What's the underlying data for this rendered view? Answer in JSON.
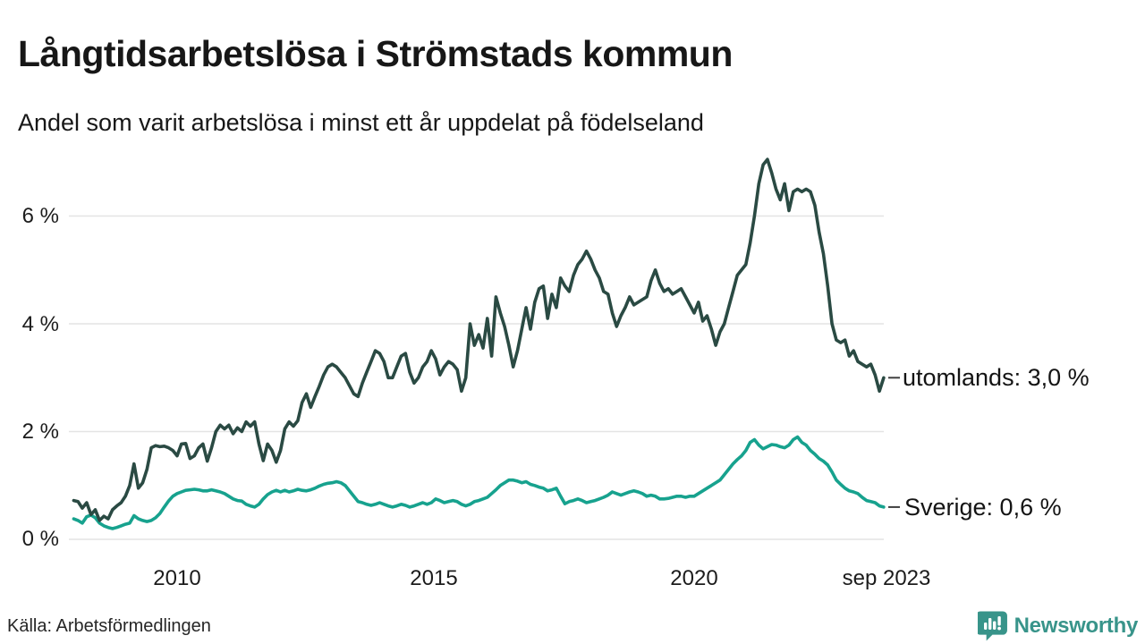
{
  "header": {
    "title": "Långtidsarbetslösa i Strömstads kommun",
    "subtitle": "Andel som varit arbetslösa i minst ett år uppdelat på födelseland"
  },
  "footer": {
    "source": "Källa: Arbetsförmedlingen",
    "brand": "Newsworthy"
  },
  "colors": {
    "utomlands_line": "#2a4a43",
    "sverige_line": "#17a28e",
    "grid": "#e4e4e4",
    "text": "#191919",
    "legend_tick": "#3f3f3f",
    "brand_teal": "#38948a"
  },
  "chart_data": {
    "type": "line",
    "title": "Långtidsarbetslösa i Strömstads kommun",
    "subtitle": "Andel som varit arbetslösa i minst ett år uppdelat på födelseland",
    "unit": "%",
    "x_start_year": 2008,
    "x_step_years": 0.08333,
    "x_tick_labels": [
      "2010",
      "2015",
      "2020",
      "sep 2023"
    ],
    "x_tick_years": [
      2010,
      2015,
      2020,
      2023.67
    ],
    "y_ticks": [
      0,
      2,
      4,
      6
    ],
    "y_tick_labels": [
      "0 %",
      "2 %",
      "4 %",
      "6 %"
    ],
    "ylim": [
      0,
      7.3
    ],
    "grid": true,
    "legend_position": "right-of-line-ends",
    "series": [
      {
        "name": "Sverige",
        "label": "Sverige: 0,6 %",
        "last_value": 0.6,
        "color": "#17a28e",
        "values": [
          0.38,
          0.35,
          0.3,
          0.42,
          0.45,
          0.4,
          0.3,
          0.25,
          0.22,
          0.2,
          0.22,
          0.25,
          0.28,
          0.3,
          0.44,
          0.38,
          0.35,
          0.33,
          0.35,
          0.4,
          0.48,
          0.6,
          0.71,
          0.8,
          0.85,
          0.88,
          0.91,
          0.92,
          0.93,
          0.92,
          0.9,
          0.9,
          0.92,
          0.9,
          0.88,
          0.85,
          0.8,
          0.75,
          0.72,
          0.71,
          0.65,
          0.62,
          0.6,
          0.65,
          0.75,
          0.83,
          0.88,
          0.91,
          0.88,
          0.91,
          0.88,
          0.9,
          0.93,
          0.91,
          0.9,
          0.92,
          0.95,
          0.99,
          1.02,
          1.04,
          1.05,
          1.07,
          1.05,
          1.0,
          0.9,
          0.8,
          0.7,
          0.68,
          0.65,
          0.63,
          0.65,
          0.68,
          0.65,
          0.62,
          0.6,
          0.62,
          0.65,
          0.63,
          0.6,
          0.62,
          0.65,
          0.68,
          0.65,
          0.68,
          0.75,
          0.72,
          0.68,
          0.7,
          0.72,
          0.7,
          0.65,
          0.62,
          0.65,
          0.7,
          0.72,
          0.75,
          0.78,
          0.85,
          0.92,
          1.0,
          1.05,
          1.1,
          1.1,
          1.08,
          1.05,
          1.07,
          1.02,
          1.0,
          0.97,
          0.95,
          0.9,
          0.92,
          0.95,
          0.8,
          0.66,
          0.7,
          0.72,
          0.75,
          0.72,
          0.68,
          0.7,
          0.72,
          0.75,
          0.78,
          0.82,
          0.88,
          0.85,
          0.82,
          0.85,
          0.88,
          0.9,
          0.88,
          0.85,
          0.8,
          0.82,
          0.8,
          0.75,
          0.75,
          0.76,
          0.78,
          0.8,
          0.8,
          0.78,
          0.8,
          0.8,
          0.85,
          0.9,
          0.95,
          1.0,
          1.05,
          1.1,
          1.2,
          1.3,
          1.4,
          1.48,
          1.55,
          1.65,
          1.8,
          1.85,
          1.75,
          1.68,
          1.72,
          1.76,
          1.75,
          1.72,
          1.7,
          1.75,
          1.85,
          1.9,
          1.8,
          1.75,
          1.65,
          1.58,
          1.5,
          1.45,
          1.38,
          1.25,
          1.1,
          1.02,
          0.95,
          0.9,
          0.88,
          0.85,
          0.78,
          0.72,
          0.7,
          0.68,
          0.62,
          0.6
        ]
      },
      {
        "name": "utomlands",
        "label": "utomlands: 3,0 %",
        "last_value": 3.0,
        "color": "#2a4a43",
        "values": [
          0.72,
          0.7,
          0.58,
          0.68,
          0.46,
          0.55,
          0.35,
          0.43,
          0.38,
          0.55,
          0.62,
          0.68,
          0.8,
          1.0,
          1.4,
          0.95,
          1.05,
          1.3,
          1.7,
          1.74,
          1.72,
          1.73,
          1.7,
          1.65,
          1.55,
          1.77,
          1.78,
          1.5,
          1.55,
          1.7,
          1.77,
          1.45,
          1.7,
          2.0,
          2.12,
          2.05,
          2.12,
          1.96,
          2.07,
          2.0,
          2.18,
          2.1,
          2.18,
          1.77,
          1.46,
          1.77,
          1.65,
          1.43,
          1.65,
          2.05,
          2.18,
          2.1,
          2.2,
          2.54,
          2.7,
          2.45,
          2.65,
          2.84,
          3.05,
          3.2,
          3.25,
          3.2,
          3.1,
          3.0,
          2.85,
          2.7,
          2.65,
          2.9,
          3.1,
          3.3,
          3.5,
          3.45,
          3.3,
          3.0,
          3.0,
          3.2,
          3.4,
          3.45,
          3.1,
          2.9,
          3.0,
          3.2,
          3.3,
          3.5,
          3.35,
          3.05,
          3.2,
          3.3,
          3.25,
          3.15,
          2.75,
          3.0,
          4.0,
          3.6,
          3.8,
          3.55,
          4.1,
          3.4,
          4.5,
          4.2,
          3.95,
          3.6,
          3.2,
          3.5,
          3.9,
          4.3,
          3.9,
          4.4,
          4.65,
          4.7,
          4.1,
          4.55,
          4.3,
          4.85,
          4.7,
          4.6,
          4.9,
          5.1,
          5.2,
          5.35,
          5.2,
          5.0,
          4.85,
          4.6,
          4.55,
          4.2,
          3.95,
          4.15,
          4.3,
          4.5,
          4.35,
          4.4,
          4.45,
          4.5,
          4.8,
          5.0,
          4.75,
          4.6,
          4.65,
          4.55,
          4.6,
          4.65,
          4.5,
          4.35,
          4.2,
          4.4,
          4.05,
          4.15,
          3.9,
          3.6,
          3.85,
          4.0,
          4.3,
          4.6,
          4.9,
          5.0,
          5.1,
          5.5,
          6.0,
          6.6,
          6.95,
          7.05,
          6.8,
          6.5,
          6.3,
          6.6,
          6.1,
          6.45,
          6.5,
          6.45,
          6.5,
          6.45,
          6.2,
          5.7,
          5.3,
          4.7,
          4.0,
          3.7,
          3.65,
          3.7,
          3.4,
          3.5,
          3.3,
          3.25,
          3.2,
          3.25,
          3.05,
          2.75,
          3.0
        ]
      }
    ]
  }
}
